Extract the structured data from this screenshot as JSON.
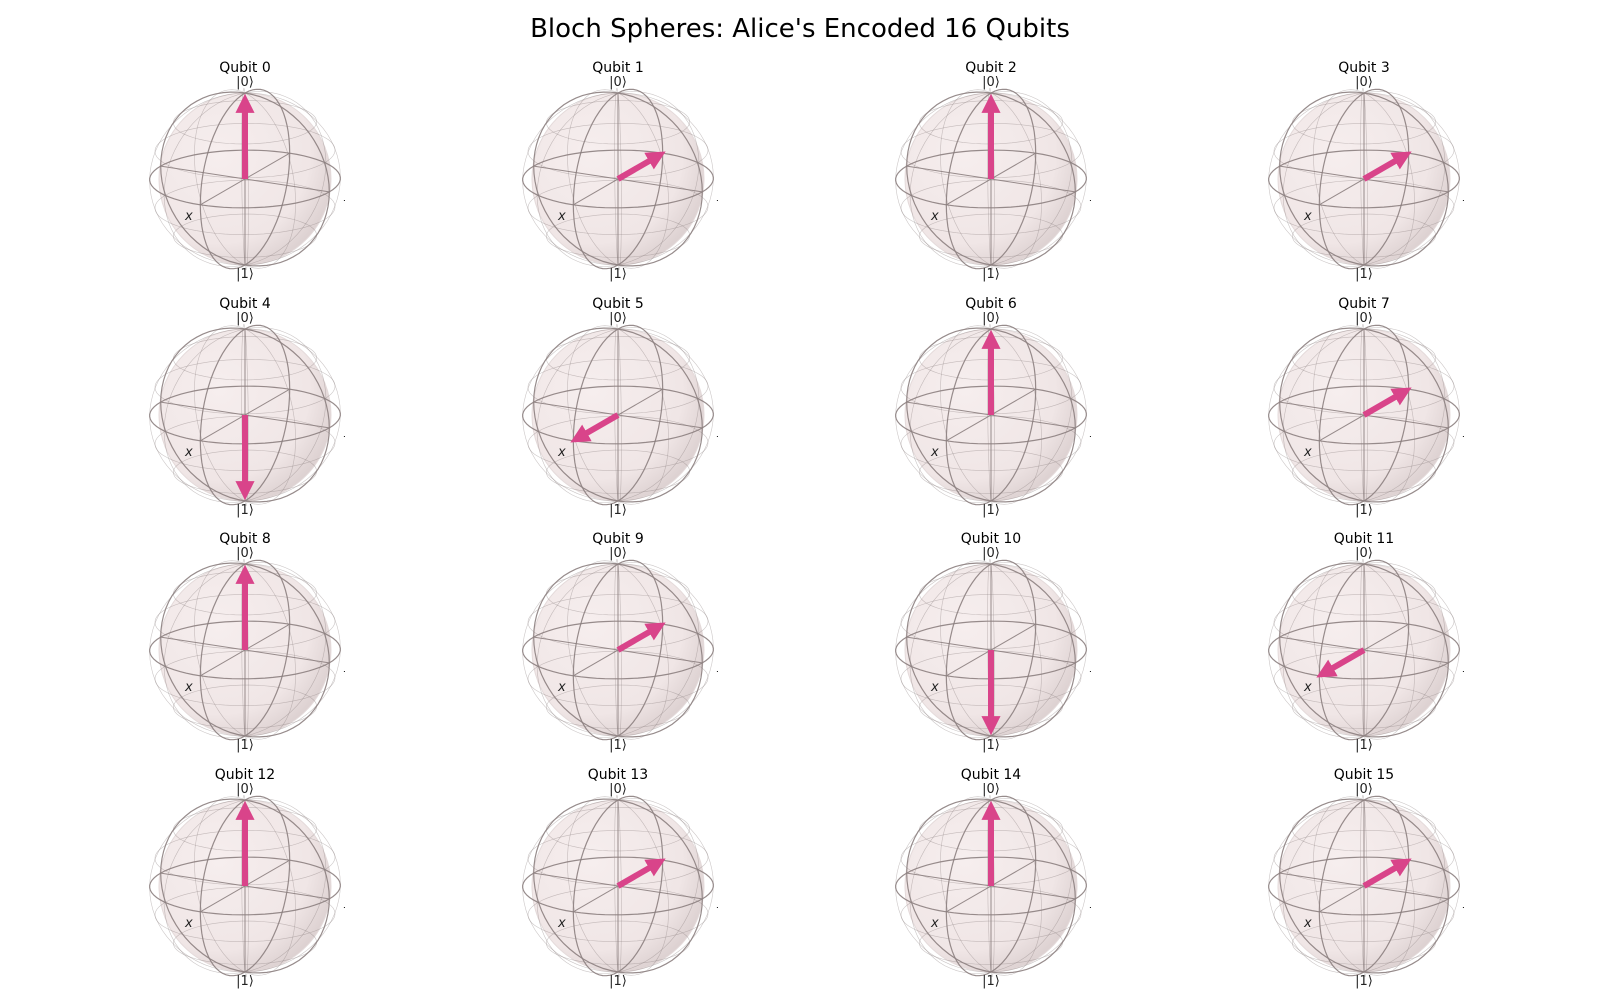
{
  "figure": {
    "title": "Bloch Spheres: Alice's Encoded 16 Qubits"
  },
  "chart_data": {
    "type": "bloch-sphere-grid",
    "title": "Bloch Spheres: Alice's Encoded 16 Qubits",
    "rows": 4,
    "cols": 4,
    "axis_labels": {
      "x": "x",
      "y": "y",
      "top": "|0⟩",
      "bottom": "|1⟩"
    },
    "vector_color": "#d9448a",
    "sphere_color": "#f0e6e6",
    "wire_color": "#8c8080",
    "qubits": [
      {
        "label": "Qubit 0",
        "state": "|0⟩",
        "vector": [
          0,
          0,
          1
        ]
      },
      {
        "label": "Qubit 1",
        "state": "|-⟩",
        "vector": [
          -1,
          0,
          0
        ]
      },
      {
        "label": "Qubit 2",
        "state": "|0⟩",
        "vector": [
          0,
          0,
          1
        ]
      },
      {
        "label": "Qubit 3",
        "state": "|-⟩",
        "vector": [
          -1,
          0,
          0
        ]
      },
      {
        "label": "Qubit 4",
        "state": "|1⟩",
        "vector": [
          0,
          0,
          -1
        ]
      },
      {
        "label": "Qubit 5",
        "state": "|+⟩",
        "vector": [
          1,
          0,
          0
        ]
      },
      {
        "label": "Qubit 6",
        "state": "|0⟩",
        "vector": [
          0,
          0,
          1
        ]
      },
      {
        "label": "Qubit 7",
        "state": "|-⟩",
        "vector": [
          -1,
          0,
          0
        ]
      },
      {
        "label": "Qubit 8",
        "state": "|0⟩",
        "vector": [
          0,
          0,
          1
        ]
      },
      {
        "label": "Qubit 9",
        "state": "|-⟩",
        "vector": [
          -1,
          0,
          0
        ]
      },
      {
        "label": "Qubit 10",
        "state": "|1⟩",
        "vector": [
          0,
          0,
          -1
        ]
      },
      {
        "label": "Qubit 11",
        "state": "|+⟩",
        "vector": [
          1,
          0,
          0
        ]
      },
      {
        "label": "Qubit 12",
        "state": "|0⟩",
        "vector": [
          0,
          0,
          1
        ]
      },
      {
        "label": "Qubit 13",
        "state": "|-⟩",
        "vector": [
          -1,
          0,
          0
        ]
      },
      {
        "label": "Qubit 14",
        "state": "|0⟩",
        "vector": [
          0,
          0,
          1
        ]
      },
      {
        "label": "Qubit 15",
        "state": "|-⟩",
        "vector": [
          -1,
          0,
          0
        ]
      }
    ]
  }
}
